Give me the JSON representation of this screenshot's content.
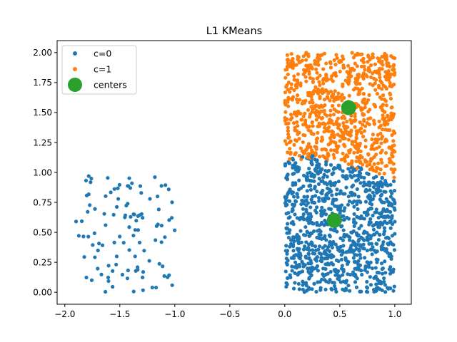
{
  "chart_data": {
    "type": "scatter",
    "title": "L1 KMeans",
    "xlabel": "",
    "ylabel": "",
    "xlim": [
      -2.07,
      1.15
    ],
    "ylim": [
      -0.1,
      2.1
    ],
    "xticks": [
      -2.0,
      -1.5,
      -1.0,
      -0.5,
      0.0,
      0.5,
      1.0
    ],
    "xtick_labels": [
      "−2.0",
      "−1.5",
      "−1.0",
      "−0.5",
      "0.0",
      "0.5",
      "1.0"
    ],
    "yticks": [
      0.0,
      0.25,
      0.5,
      0.75,
      1.0,
      1.25,
      1.5,
      1.75,
      2.0
    ],
    "ytick_labels": [
      "0.00",
      "0.25",
      "0.50",
      "0.75",
      "1.00",
      "1.25",
      "1.50",
      "1.75",
      "2.00"
    ],
    "grid": false,
    "legend_position": "top-left",
    "colors": {
      "c0": "#1f77b4",
      "c1": "#ff7f0e",
      "centers": "#2ca02c"
    },
    "series": [
      {
        "name": "c=0",
        "regions": [
          {
            "x_range": [
              -1.92,
              -1.0
            ],
            "y_range": [
              0.0,
              0.98
            ],
            "count": 110
          },
          {
            "x_range": [
              0.0,
              1.0
            ],
            "y_range": [
              0.0,
              1.12
            ],
            "boundary": "points in [0,1]x[0,1.1] below a cut line from y=1.12 at x=0.25 to y=0.97 at x=1.0",
            "count": 900
          }
        ]
      },
      {
        "name": "c=1",
        "regions": [
          {
            "x_range": [
              0.0,
              1.0
            ],
            "y_range": [
              0.95,
              2.0
            ],
            "boundary": "points in [0,1]x[0,2] above the cut line",
            "count": 900
          }
        ]
      },
      {
        "name": "centers",
        "points": [
          [
            0.45,
            0.6
          ],
          [
            0.58,
            1.54
          ]
        ]
      }
    ]
  }
}
